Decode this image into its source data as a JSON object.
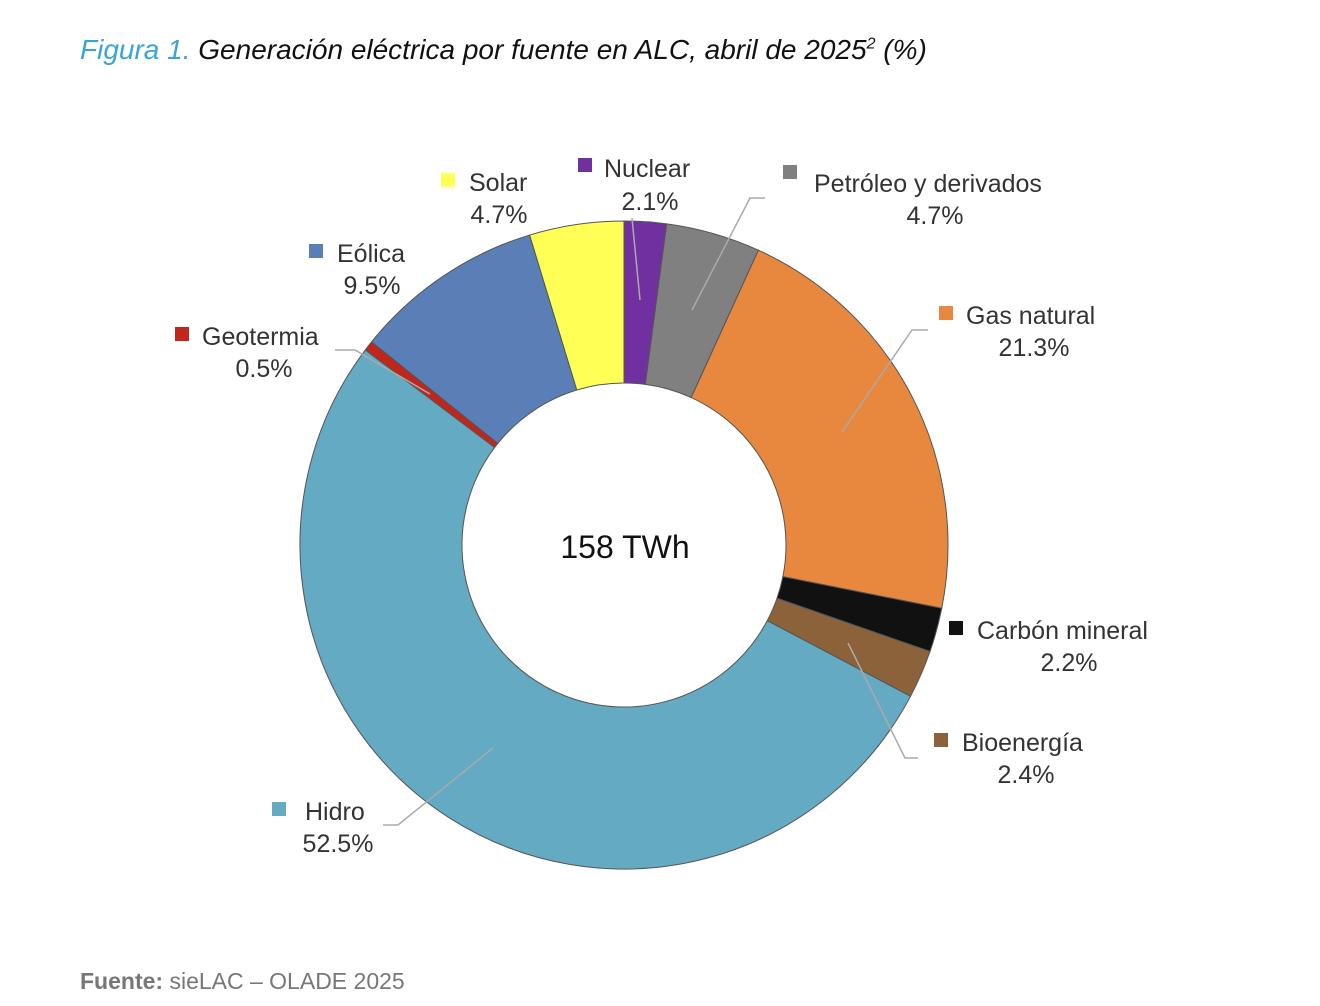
{
  "figure": {
    "prefix": "Figura 1.",
    "title": "Generación eléctrica por fuente en ALC, abril de 2025",
    "superscript": "2",
    "unit": "(%)"
  },
  "source": {
    "label": "Fuente:",
    "text": "sieLAC – OLADE 2025"
  },
  "chart_data": {
    "type": "pie",
    "style": "donut",
    "center_label": "158 TWh",
    "title": "Generación eléctrica por fuente en ALC, abril de 2025 (%)",
    "categories": [
      "Nuclear",
      "Petróleo y derivados",
      "Gas natural",
      "Carbón mineral",
      "Bioenergía",
      "Hidro",
      "Geotermia",
      "Eólica",
      "Solar"
    ],
    "values": [
      2.1,
      4.7,
      21.3,
      2.2,
      2.4,
      52.5,
      0.5,
      9.5,
      4.7
    ],
    "value_labels": [
      "2.1%",
      "4.7%",
      "21.3%",
      "2.2%",
      "2.4%",
      "52.5%",
      "0.5%",
      "9.5%",
      "4.7%"
    ],
    "colors": [
      "#7030a0",
      "#808080",
      "#e8883e",
      "#111111",
      "#8b6239",
      "#64aac3",
      "#c0261c",
      "#5a7fb6",
      "#ffff55"
    ],
    "legend": "labels next to slices"
  }
}
